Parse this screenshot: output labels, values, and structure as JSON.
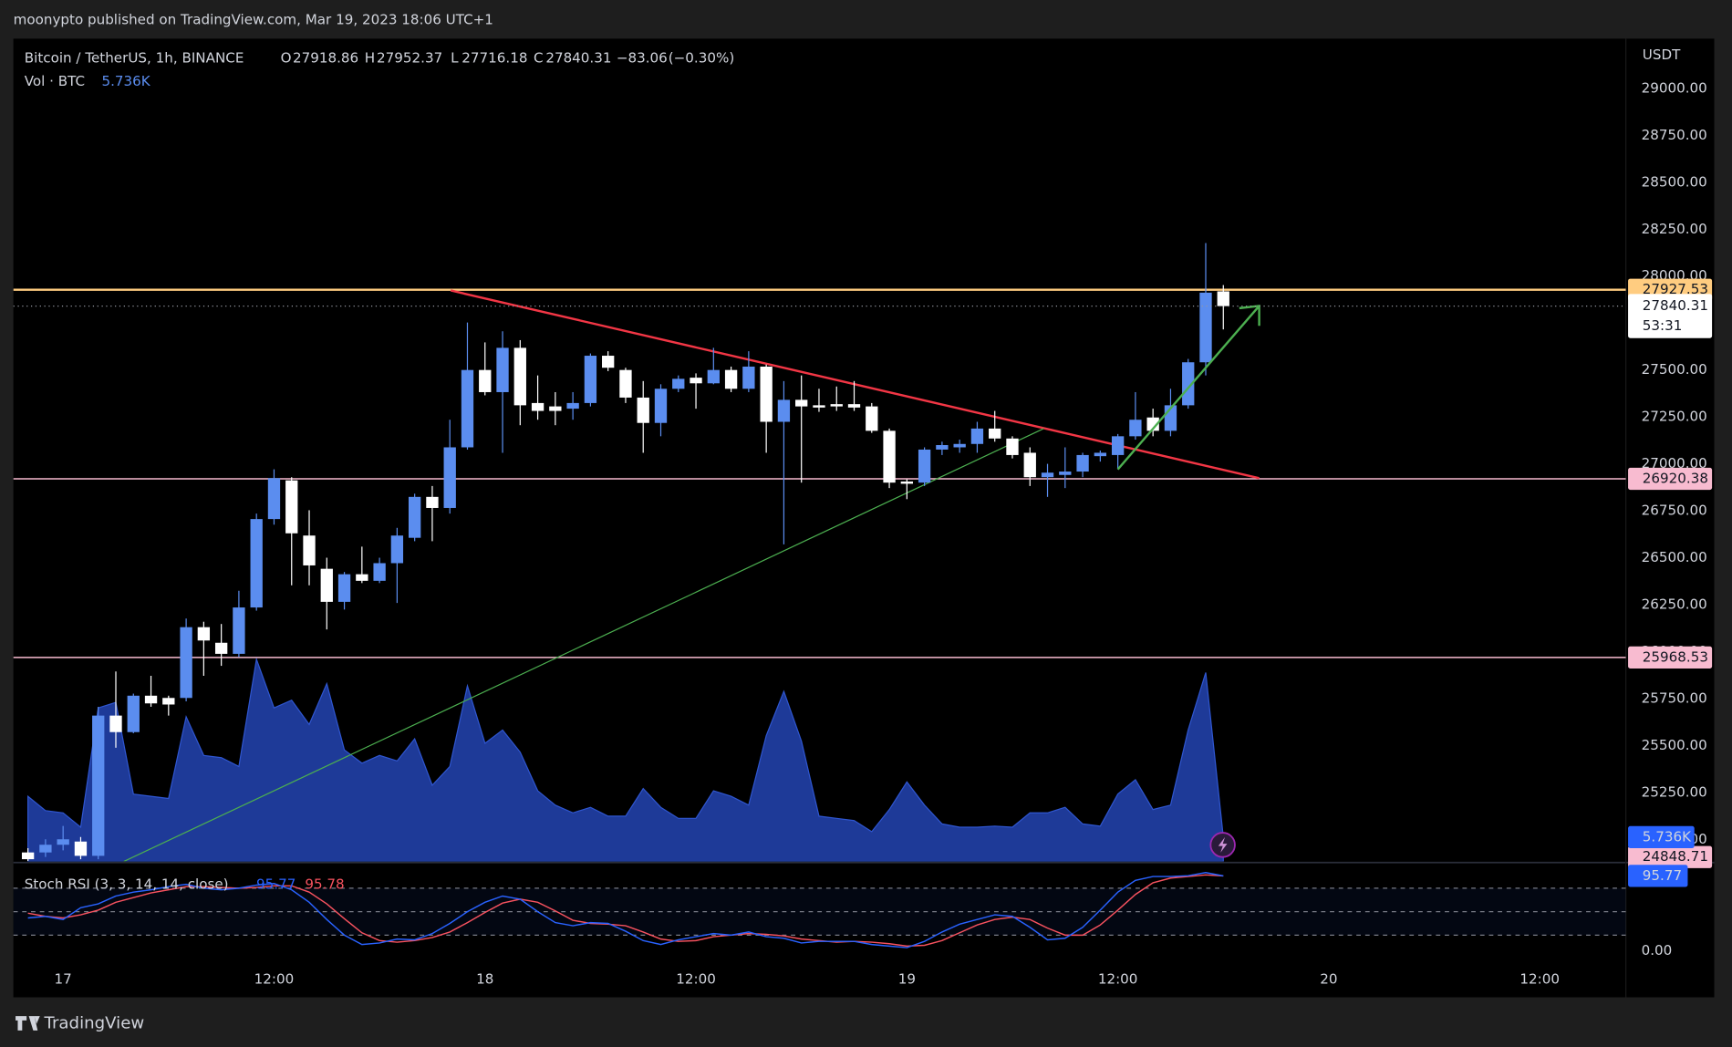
{
  "header": {
    "publisher": "moonypto published on TradingView.com, Mar 19, 2023 18:06 UTC+1"
  },
  "footer": {
    "brand": "TradingView"
  },
  "chart_data": {
    "type": "candlestick",
    "title": "Bitcoin / TetherUS, 1h, BINANCE",
    "ohlc_letters": [
      "O",
      "H",
      "L",
      "C"
    ],
    "change": {
      "value": -83.06,
      "label": "−83.06"
    },
    "change_pct": {
      "value": -0.3,
      "label": "(−0.30%)"
    },
    "y_axis_label": "USDT",
    "countdown": "53:31",
    "up_color": "#5b8def",
    "down_color": "#ffffff",
    "grid": false,
    "xlim": [
      -2.83,
      88.9
    ],
    "xticks": [
      {
        "value": 0,
        "label": "17"
      },
      {
        "value": 12,
        "label": "12:00"
      },
      {
        "value": 24,
        "label": "18"
      },
      {
        "value": 36,
        "label": "12:00"
      },
      {
        "value": 48,
        "label": "19"
      },
      {
        "value": 60,
        "label": "12:00"
      },
      {
        "value": 72,
        "label": "20"
      },
      {
        "value": 84,
        "label": "12:00"
      }
    ],
    "ylim": [
      24882,
      29265
    ],
    "yticks": [
      {
        "value": 25000,
        "label": "25000.00"
      },
      {
        "value": 25250,
        "label": "25250.00"
      },
      {
        "value": 25500,
        "label": "25500.00"
      },
      {
        "value": 25750,
        "label": "25750.00"
      },
      {
        "value": 26000,
        "label": "26000.00"
      },
      {
        "value": 26250,
        "label": "26250.00"
      },
      {
        "value": 26500,
        "label": "26500.00"
      },
      {
        "value": 26750,
        "label": "26750.00"
      },
      {
        "value": 27000,
        "label": "27000.00"
      },
      {
        "value": 27250,
        "label": "27250.00"
      },
      {
        "value": 27500,
        "label": "27500.00"
      },
      {
        "value": 27750,
        "label": "27750.00"
      },
      {
        "value": 28000,
        "label": "28000.00"
      },
      {
        "value": 28250,
        "label": "28250.00"
      },
      {
        "value": 28500,
        "label": "28500.00"
      },
      {
        "value": 28750,
        "label": "28750.00"
      },
      {
        "value": 29000,
        "label": "29000.00"
      }
    ],
    "x": [
      -2,
      -1,
      0,
      1,
      2,
      3,
      4,
      5,
      6,
      7,
      8,
      9,
      10,
      11,
      12,
      13,
      14,
      15,
      16,
      17,
      18,
      19,
      20,
      21,
      22,
      23,
      24,
      25,
      26,
      27,
      28,
      29,
      30,
      31,
      32,
      33,
      34,
      35,
      36,
      37,
      38,
      39,
      40,
      41,
      42,
      43,
      44,
      45,
      46,
      47,
      48,
      49,
      50,
      51,
      52,
      53,
      54,
      55,
      56,
      57,
      58,
      59,
      60,
      61,
      62,
      63,
      64,
      65,
      66
    ],
    "open": [
      24930,
      24930,
      24971,
      24988,
      24912,
      25659,
      25571,
      25765,
      25753,
      25753,
      26130,
      26047,
      25988,
      26235,
      26706,
      26912,
      26618,
      26441,
      26265,
      26412,
      26377,
      26471,
      26606,
      26824,
      26765,
      27088,
      27500,
      27382,
      27618,
      27324,
      27306,
      27294,
      27324,
      27576,
      27500,
      27353,
      27218,
      27400,
      27459,
      27429,
      27500,
      27400,
      27518,
      27224,
      27341,
      27312,
      27318,
      27318,
      27306,
      27176,
      26906,
      26900,
      27076,
      27088,
      27106,
      27188,
      27135,
      27059,
      26929,
      26941,
      26959,
      27041,
      27047,
      27147,
      27247,
      27176,
      27312,
      27541,
      27918.86
    ],
    "high": [
      24953,
      25000,
      25071,
      25012,
      25706,
      25894,
      25776,
      25871,
      25765,
      26176,
      26159,
      26147,
      26324,
      26735,
      26971,
      26929,
      26753,
      26500,
      26424,
      26559,
      26500,
      26659,
      26841,
      26882,
      27235,
      27753,
      27647,
      27706,
      27659,
      27471,
      27382,
      27382,
      27588,
      27600,
      27512,
      27441,
      27424,
      27471,
      27482,
      27618,
      27518,
      27600,
      27529,
      27441,
      27471,
      27400,
      27412,
      27441,
      27324,
      27188,
      26918,
      27088,
      27118,
      27129,
      27224,
      27282,
      27147,
      27088,
      27000,
      27088,
      27059,
      27071,
      27159,
      27382,
      27294,
      27400,
      27559,
      28176,
      27952.37
    ],
    "low": [
      24885,
      24906,
      24941,
      24894,
      24894,
      25488,
      25565,
      25706,
      25659,
      25735,
      25871,
      25924,
      25971,
      26218,
      26676,
      26353,
      26353,
      26118,
      26224,
      26365,
      26365,
      26259,
      26588,
      26588,
      26735,
      27076,
      27365,
      27059,
      27206,
      27235,
      27206,
      27235,
      27306,
      27494,
      27324,
      27059,
      27147,
      27382,
      27294,
      27424,
      27382,
      27382,
      27059,
      26571,
      26900,
      27277,
      27282,
      27282,
      27165,
      26871,
      26812,
      26882,
      27047,
      27059,
      27059,
      27118,
      27029,
      26882,
      26824,
      26871,
      26929,
      27012,
      26971,
      27129,
      27147,
      27147,
      27294,
      27471,
      27716.18
    ],
    "close": [
      24894,
      24971,
      25000,
      24912,
      25659,
      25571,
      25765,
      25724,
      25718,
      26130,
      26059,
      25988,
      26235,
      26706,
      26924,
      26630,
      26459,
      26265,
      26412,
      26377,
      26471,
      26618,
      26824,
      26765,
      27088,
      27500,
      27382,
      27618,
      27312,
      27282,
      27282,
      27324,
      27576,
      27512,
      27353,
      27218,
      27400,
      27453,
      27429,
      27500,
      27400,
      27518,
      27224,
      27341,
      27306,
      27300,
      27306,
      27300,
      27176,
      26900,
      26894,
      27076,
      27100,
      27106,
      27188,
      27135,
      27047,
      26929,
      26953,
      26959,
      27047,
      27059,
      27147,
      27235,
      27176,
      27312,
      27541,
      27912,
      27840.31
    ],
    "levels": [
      27927.53,
      26920.38,
      25968.53,
      24848.71
    ],
    "level_colors": [
      "#ffcc80",
      "#f8bbd0",
      "#f8bbd0",
      "#f8bbd0"
    ],
    "volume": {
      "name": "Vol · BTC",
      "color": "#2140a8",
      "values": [
        15340,
        11960,
        11440,
        8060,
        36140,
        37440,
        15860,
        15340,
        14820,
        34060,
        24960,
        24440,
        22360,
        47580,
        36140,
        37960,
        32240,
        41860,
        26260,
        23140,
        24960,
        23660,
        28860,
        17940,
        22360,
        41340,
        27820,
        30940,
        25740,
        16640,
        13260,
        11440,
        12740,
        10660,
        10660,
        17160,
        12740,
        10140,
        10140,
        16640,
        15340,
        13260,
        29640,
        40040,
        28340,
        10660,
        10140,
        9620,
        7020,
        12220,
        18720,
        13260,
        8840,
        8060,
        8060,
        8320,
        8060,
        11440,
        11440,
        12740,
        8840,
        8320,
        15860,
        19240,
        12220,
        13260,
        30940,
        44460,
        5736
      ],
      "last_label": "5.736K"
    },
    "stoch_rsi": {
      "name": "Stoch RSI (3, 3, 14, 14, close)",
      "k_color": "#2962ff",
      "d_color": "#f7525f",
      "ylim": [
        -12.9,
        111.4
      ],
      "yticks": [
        {
          "value": 0,
          "label": "0.00"
        }
      ],
      "bands": [
        20,
        50,
        80
      ],
      "k": [
        42,
        44,
        40,
        55,
        60,
        70,
        75,
        78,
        82,
        85,
        80,
        78,
        80,
        84,
        86,
        78,
        62,
        40,
        20,
        8,
        10,
        15,
        14,
        22,
        35,
        50,
        62,
        70,
        66,
        50,
        36,
        32,
        36,
        35,
        25,
        13,
        8,
        14,
        18,
        22,
        20,
        24,
        18,
        16,
        10,
        12,
        12,
        12,
        8,
        6,
        4,
        12,
        24,
        34,
        40,
        46,
        44,
        30,
        14,
        16,
        30,
        52,
        75,
        90,
        95,
        95,
        96,
        100,
        95.77
      ],
      "d": [
        48,
        44,
        42,
        46,
        52,
        62,
        68,
        74,
        78,
        82,
        82,
        81,
        80,
        81,
        83,
        83,
        75,
        60,
        41,
        23,
        13,
        11,
        13,
        17,
        24,
        36,
        49,
        61,
        66,
        62,
        51,
        39,
        35,
        34,
        32,
        24,
        15,
        12,
        13,
        18,
        20,
        22,
        21,
        19,
        15,
        13,
        11,
        12,
        11,
        9,
        6,
        7,
        13,
        23,
        33,
        40,
        43,
        40,
        29,
        20,
        20,
        33,
        52,
        72,
        87,
        93,
        95,
        97,
        95.78
      ]
    }
  }
}
